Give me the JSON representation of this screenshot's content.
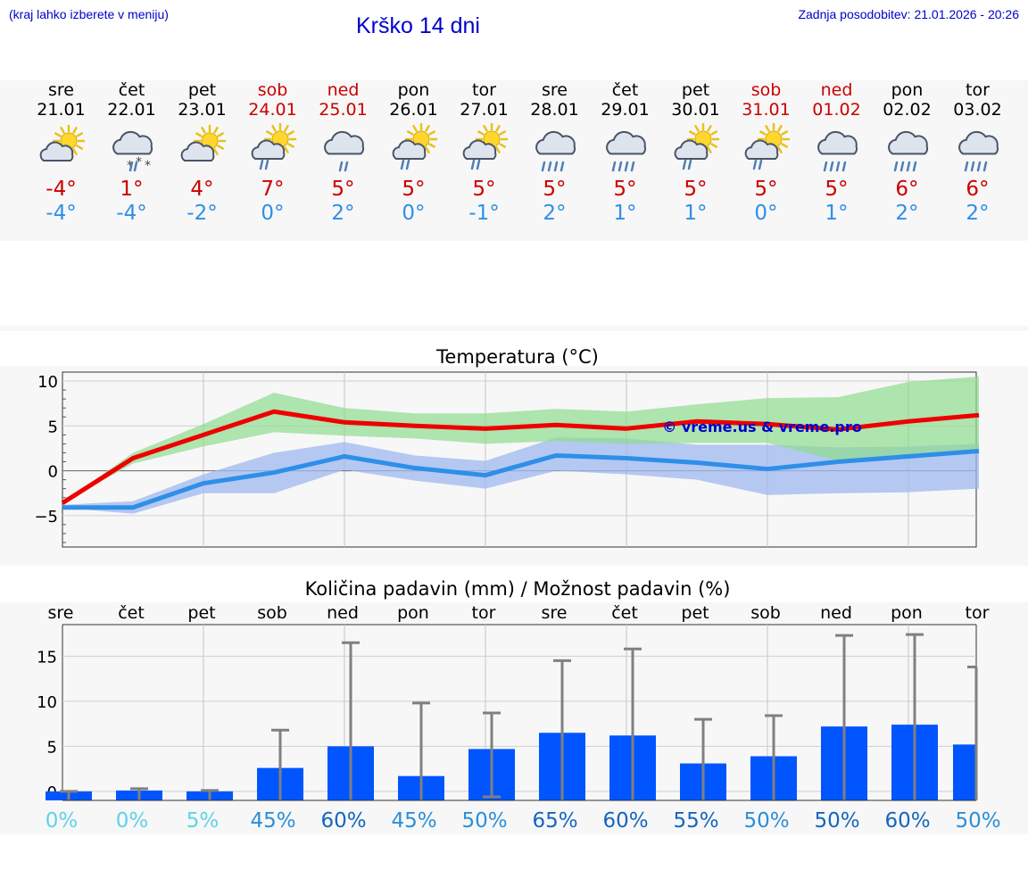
{
  "header": {
    "hint": "(kraj lahko izberete v meniju)",
    "title": "Krško 14 dni",
    "updated": "Zadnja posodobitev: 21.01.2026 - 20:26"
  },
  "colors": {
    "max": "#cc0000",
    "min": "#2e8fe8",
    "bar": "#0055ff",
    "watermark": "#0000cc"
  },
  "days": [
    {
      "name": "sre",
      "date": "21.01",
      "weekend": false,
      "icon": "partly-cloudy-icon",
      "max": "-4°",
      "min": "-4°"
    },
    {
      "name": "čet",
      "date": "22.01",
      "weekend": false,
      "icon": "snow-icon",
      "max": "1°",
      "min": "-4°"
    },
    {
      "name": "pet",
      "date": "23.01",
      "weekend": false,
      "icon": "partly-cloudy-icon",
      "max": "4°",
      "min": "-2°"
    },
    {
      "name": "sob",
      "date": "24.01",
      "weekend": true,
      "icon": "sun-rain-icon",
      "max": "7°",
      "min": "0°"
    },
    {
      "name": "ned",
      "date": "25.01",
      "weekend": true,
      "icon": "light-rain-icon",
      "max": "5°",
      "min": "2°"
    },
    {
      "name": "pon",
      "date": "26.01",
      "weekend": false,
      "icon": "sun-rain-icon",
      "max": "5°",
      "min": "0°"
    },
    {
      "name": "tor",
      "date": "27.01",
      "weekend": false,
      "icon": "sun-rain-icon",
      "max": "5°",
      "min": "-1°"
    },
    {
      "name": "sre",
      "date": "28.01",
      "weekend": false,
      "icon": "rain-icon",
      "max": "5°",
      "min": "2°"
    },
    {
      "name": "čet",
      "date": "29.01",
      "weekend": false,
      "icon": "rain-icon",
      "max": "5°",
      "min": "1°"
    },
    {
      "name": "pet",
      "date": "30.01",
      "weekend": false,
      "icon": "sun-rain-icon",
      "max": "5°",
      "min": "1°"
    },
    {
      "name": "sob",
      "date": "31.01",
      "weekend": true,
      "icon": "sun-rain-icon",
      "max": "5°",
      "min": "0°"
    },
    {
      "name": "ned",
      "date": "01.02",
      "weekend": true,
      "icon": "rain-icon",
      "max": "5°",
      "min": "1°"
    },
    {
      "name": "pon",
      "date": "02.02",
      "weekend": false,
      "icon": "rain-icon",
      "max": "6°",
      "min": "2°"
    },
    {
      "name": "tor",
      "date": "03.02",
      "weekend": false,
      "icon": "rain-icon",
      "max": "6°",
      "min": "2°"
    }
  ],
  "chart_data": [
    {
      "type": "line",
      "title": "Temperatura (°C)",
      "watermark": "© vreme.us & vreme.pro",
      "ylim": [
        -8.5,
        11
      ],
      "yticks": [
        10,
        5,
        0,
        -5
      ],
      "ytick_labels": [
        "10",
        "5",
        "0",
        "−5"
      ],
      "x": [
        0,
        1,
        2,
        3,
        4,
        5,
        6,
        7,
        8,
        9,
        10,
        11,
        12,
        13
      ],
      "series": [
        {
          "name": "max",
          "values": [
            -3.6,
            1.4,
            4.0,
            6.6,
            5.4,
            5.0,
            4.7,
            5.1,
            4.7,
            5.5,
            5.2,
            4.6,
            5.5,
            6.2
          ]
        },
        {
          "name": "min",
          "values": [
            -4.1,
            -4.1,
            -1.4,
            -0.2,
            1.6,
            0.3,
            -0.5,
            1.7,
            1.4,
            0.9,
            0.2,
            1.0,
            1.6,
            2.2
          ]
        }
      ],
      "bands": [
        {
          "name": "max-range",
          "low": [
            -3.6,
            0.8,
            2.7,
            4.3,
            3.9,
            3.6,
            3.0,
            3.3,
            3.0,
            3.1,
            3.1,
            1.1,
            1.4,
            2.4
          ],
          "high": [
            -3.6,
            2.0,
            5.2,
            8.7,
            7.0,
            6.4,
            6.4,
            6.9,
            6.6,
            7.4,
            8.1,
            8.2,
            9.9,
            10.5
          ]
        },
        {
          "name": "min-range",
          "low": [
            -4.1,
            -4.8,
            -2.5,
            -2.5,
            0.1,
            -1.1,
            -2.0,
            0.0,
            -0.4,
            -1.0,
            -2.7,
            -2.5,
            -2.4,
            -2.0
          ],
          "high": [
            -3.8,
            -3.4,
            -0.4,
            2.0,
            3.2,
            1.7,
            1.1,
            3.7,
            3.6,
            2.9,
            2.9,
            2.6,
            2.7,
            3.0
          ]
        }
      ]
    },
    {
      "type": "bar",
      "title": "Količina padavin (mm) / Možnost padavin (%)",
      "categories": [
        "sre",
        "čet",
        "pet",
        "sob",
        "ned",
        "pon",
        "tor",
        "sre",
        "čet",
        "pet",
        "sob",
        "ned",
        "pon",
        "tor"
      ],
      "ylim": [
        -1,
        18.5
      ],
      "yticks": [
        15,
        10,
        5,
        0
      ],
      "values": [
        0,
        0.1,
        0,
        2.6,
        5.0,
        1.7,
        4.7,
        6.5,
        6.2,
        3.1,
        3.9,
        7.2,
        7.4,
        5.2
      ],
      "error_high": [
        0,
        0.3,
        0.1,
        6.8,
        16.5,
        9.8,
        8.7,
        14.5,
        15.8,
        8.0,
        8.4,
        17.3,
        17.4,
        13.8
      ],
      "error_low": [
        0,
        0,
        0,
        0,
        0,
        0,
        -0.6,
        0,
        0,
        0,
        0,
        0,
        0,
        0
      ],
      "probability": [
        "0%",
        "0%",
        "5%",
        "45%",
        "60%",
        "45%",
        "50%",
        "65%",
        "60%",
        "55%",
        "50%",
        "50%",
        "60%",
        "50%"
      ],
      "probability_colors": [
        "#5fd3e6",
        "#5fd3e6",
        "#5fd3e6",
        "#2b8fd8",
        "#1565c0",
        "#2b8fd8",
        "#2b8fd8",
        "#1565c0",
        "#1565c0",
        "#1565c0",
        "#2b8fd8",
        "#1565c0",
        "#1565c0",
        "#2b8fd8"
      ]
    }
  ]
}
